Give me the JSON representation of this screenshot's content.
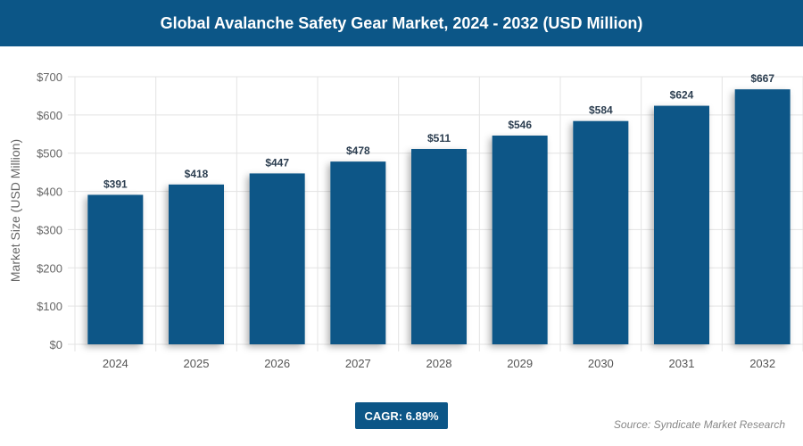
{
  "chart_data": {
    "type": "bar",
    "title": "Global Avalanche Safety Gear Market, 2024 - 2032 (USD Million)",
    "categories": [
      "2024",
      "2025",
      "2026",
      "2027",
      "2028",
      "2029",
      "2030",
      "2031",
      "2032"
    ],
    "values": [
      391,
      418,
      447,
      478,
      511,
      546,
      584,
      624,
      667
    ],
    "data_labels": [
      "$391",
      "$418",
      "$447",
      "$478",
      "$511",
      "$546",
      "$584",
      "$624",
      "$667"
    ],
    "xlabel": "",
    "ylabel": "Market Size (USD Million)",
    "ylim": [
      0,
      700
    ],
    "yticks": [
      "$0",
      "$100",
      "$200",
      "$300",
      "$400",
      "$500",
      "$600",
      "$700"
    ],
    "grid": true,
    "bar_color": "#0c5687"
  },
  "cagr": "CAGR: 6.89%",
  "source": "Source: Syndicate Market Research"
}
